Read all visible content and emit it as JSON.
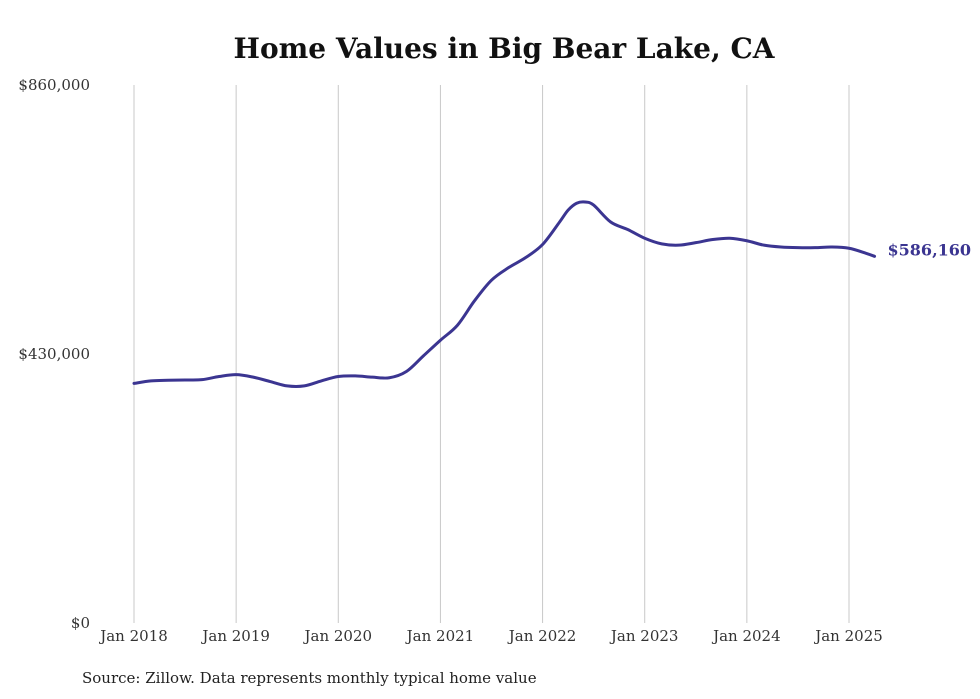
{
  "chart_data": {
    "type": "line",
    "title": "Home Values in Big Bear Lake, CA",
    "xlabel": "",
    "ylabel": "",
    "ylim": [
      0,
      860000
    ],
    "y_ticks": [
      {
        "value": 860000,
        "label": "$860,000"
      },
      {
        "value": 430000,
        "label": "$430,000"
      },
      {
        "value": 0,
        "label": "$0"
      }
    ],
    "x_ticks": [
      {
        "value": 2018,
        "label": "Jan 2018"
      },
      {
        "value": 2019,
        "label": "Jan 2019"
      },
      {
        "value": 2020,
        "label": "Jan 2020"
      },
      {
        "value": 2021,
        "label": "Jan 2021"
      },
      {
        "value": 2022,
        "label": "Jan 2022"
      },
      {
        "value": 2023,
        "label": "Jan 2023"
      },
      {
        "value": 2024,
        "label": "Jan 2024"
      },
      {
        "value": 2025,
        "label": "Jan 2025"
      }
    ],
    "xlim": [
      2018,
      2025.33
    ],
    "grid": "vertical",
    "series": [
      {
        "color": "#3b3591",
        "end_label": "$586,160",
        "x": [
          "Jan 2018",
          "Mar 2018",
          "May 2018",
          "Jul 2018",
          "Sep 2018",
          "Nov 2018",
          "Jan 2019",
          "Mar 2019",
          "May 2019",
          "Jul 2019",
          "Sep 2019",
          "Nov 2019",
          "Jan 2020",
          "Mar 2020",
          "May 2020",
          "Jul 2020",
          "Sep 2020",
          "Nov 2020",
          "Jan 2021",
          "Mar 2021",
          "May 2021",
          "Jul 2021",
          "Sep 2021",
          "Nov 2021",
          "Jan 2022",
          "Mar 2022",
          "Apr 2022",
          "May 2022",
          "Jun 2022",
          "Jul 2022",
          "Sep 2022",
          "Nov 2022",
          "Jan 2023",
          "Mar 2023",
          "May 2023",
          "Jul 2023",
          "Sep 2023",
          "Nov 2023",
          "Jan 2024",
          "Mar 2024",
          "May 2024",
          "Jul 2024",
          "Sep 2024",
          "Nov 2024",
          "Jan 2025",
          "Mar 2025",
          "Apr 2025"
        ],
        "values": [
          383000,
          387000,
          388000,
          388500,
          389000,
          394000,
          397000,
          393000,
          386000,
          379000,
          379000,
          387000,
          394000,
          395000,
          393000,
          392000,
          402000,
          427000,
          452000,
          476000,
          515000,
          548000,
          568000,
          584000,
          605000,
          641000,
          660000,
          671000,
          673000,
          668000,
          641000,
          629000,
          615000,
          606000,
          604000,
          608000,
          613000,
          615000,
          611000,
          604000,
          601000,
          600000,
          600000,
          601000,
          599000,
          591000,
          586160
        ]
      }
    ],
    "source": "Source: Zillow. Data represents monthly typical home value"
  }
}
